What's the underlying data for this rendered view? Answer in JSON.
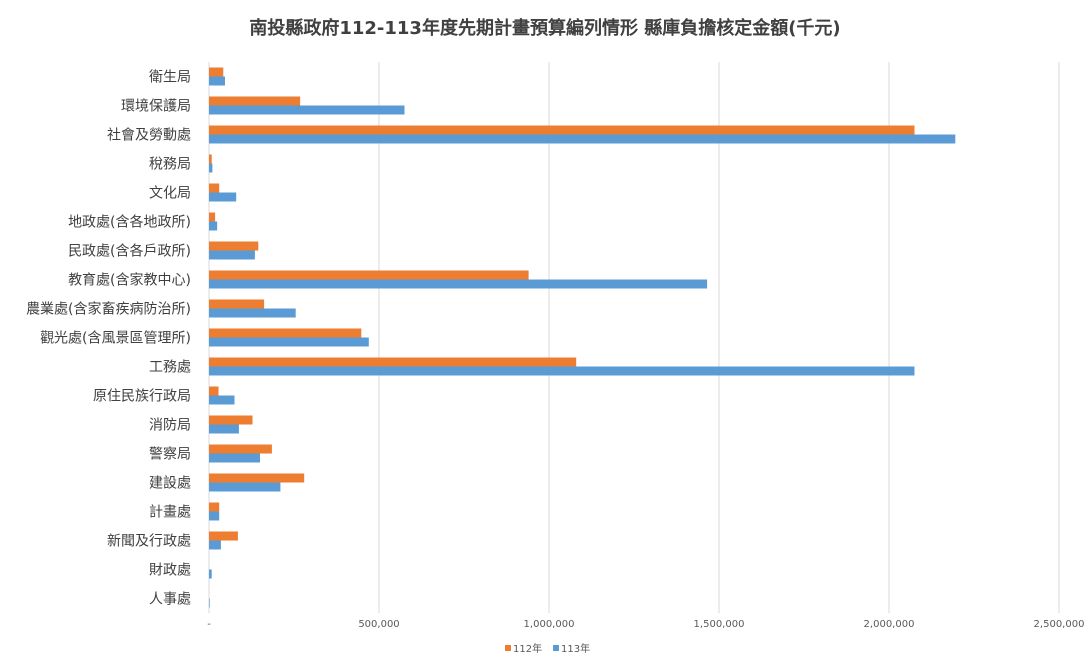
{
  "chart_data": {
    "type": "bar",
    "orientation": "horizontal",
    "title": "南投縣政府112-113年度先期計畫預算編列情形 縣庫負擔核定金額(千元)",
    "xlabel": "",
    "ylabel": "",
    "xlim": [
      0,
      2500000
    ],
    "x_ticks": [
      "-",
      "500,000",
      "1,000,000",
      "1,500,000",
      "2,000,000",
      "2,500,000"
    ],
    "x_tick_values": [
      0,
      500000,
      1000000,
      1500000,
      2000000,
      2500000
    ],
    "grid": "vertical",
    "legend_position": "bottom",
    "categories": [
      "衛生局",
      "環境保護局",
      "社會及勞動處",
      "稅務局",
      "文化局",
      "地政處(含各地政所)",
      "民政處(含各戶政所)",
      "教育處(含家教中心)",
      "農業處(含家畜疾病防治所)",
      "觀光處(含風景區管理所)",
      "工務處",
      "原住民族行政局",
      "消防局",
      "警察局",
      "建設處",
      "計畫處",
      "新聞及行政處",
      "財政處",
      "人事處"
    ],
    "series": [
      {
        "name": "112年",
        "color": "#ED7D31",
        "values": [
          42000,
          268000,
          2075000,
          8000,
          30000,
          18000,
          145000,
          940000,
          162000,
          448000,
          1080000,
          28000,
          128000,
          185000,
          280000,
          30000,
          85000,
          0,
          0
        ]
      },
      {
        "name": "113年",
        "color": "#5B9BD5",
        "values": [
          47000,
          575000,
          2195000,
          10000,
          80000,
          24000,
          135000,
          1465000,
          255000,
          470000,
          2075000,
          75000,
          88000,
          150000,
          210000,
          30000,
          35000,
          8000,
          2000
        ]
      }
    ]
  }
}
